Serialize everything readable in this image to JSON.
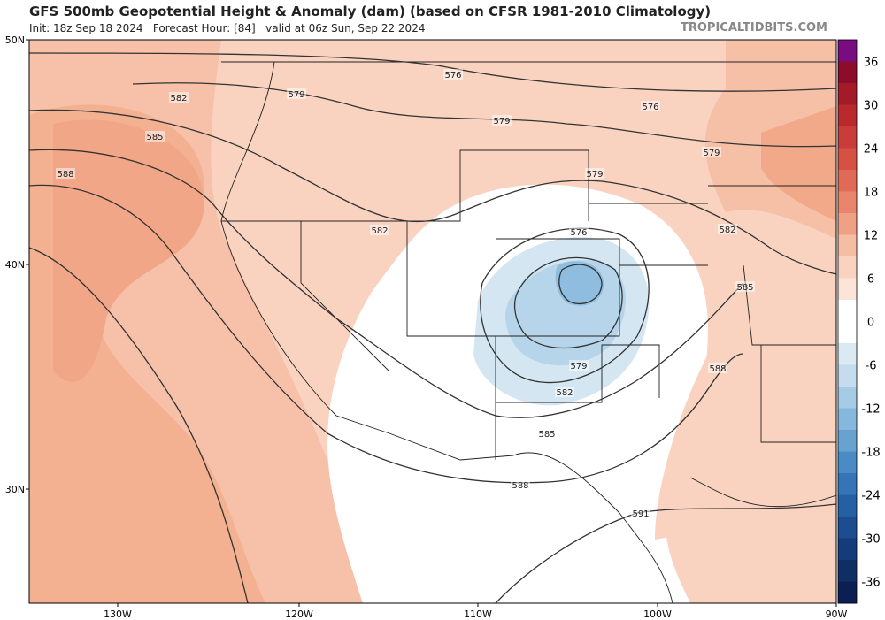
{
  "header": {
    "title": "GFS 500mb Geopotential Height & Anomaly (dam) (based on CFSR 1981-2010 Climatology)",
    "subtitle": "Init: 18z Sep 18 2024   Forecast Hour: [84]   valid at 06z Sun, Sep 22 2024",
    "source": "TROPICALTIDBITS.COM"
  },
  "map": {
    "latitude_labels": [
      "50N",
      "40N",
      "30N"
    ],
    "longitude_labels": [
      "130W",
      "120W",
      "110W",
      "100W",
      "90W"
    ],
    "contour_labels": [
      "576",
      "579",
      "582",
      "585",
      "588",
      "579",
      "576",
      "579",
      "579",
      "582",
      "576",
      "582",
      "585",
      "579",
      "582",
      "588",
      "585",
      "588",
      "591"
    ]
  },
  "colorbar": {
    "labels": [
      "36",
      "30",
      "24",
      "18",
      "12",
      "6",
      "0",
      "-6",
      "-12",
      "-18",
      "-24",
      "-30",
      "-36"
    ]
  }
}
